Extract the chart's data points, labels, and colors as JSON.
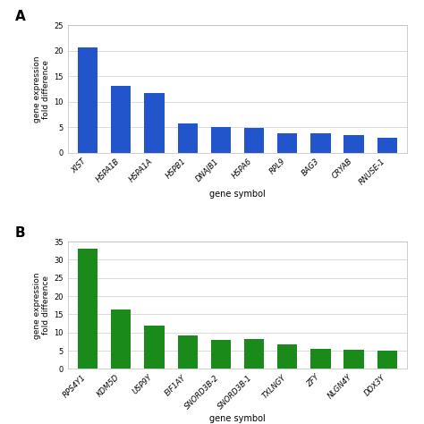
{
  "panel_A": {
    "categories": [
      "XIST",
      "HSPA1B",
      "HSPA1A",
      "HSPB1",
      "DNAJB1",
      "HSPA6",
      "RPL9",
      "BAG3",
      "CRYAB",
      "RNUSE-1"
    ],
    "values": [
      20.6,
      13.1,
      11.8,
      5.7,
      5.0,
      4.8,
      3.8,
      3.8,
      3.4,
      3.0
    ],
    "color": "#2255cc",
    "ylabel": "gene expression\nfold difference",
    "xlabel": "gene symbol",
    "ylim": [
      0,
      25
    ],
    "yticks": [
      0,
      5,
      10,
      15,
      20,
      25
    ],
    "label": "A"
  },
  "panel_B": {
    "categories": [
      "RPS4Y1",
      "KDM5D",
      "USP9Y",
      "EIF1AY",
      "SNORD3B-2",
      "SNORD3B-1",
      "TXLNGY",
      "ZFY",
      "NLGN4Y",
      "DDX3Y"
    ],
    "values": [
      33.0,
      16.3,
      12.0,
      9.2,
      8.0,
      8.1,
      6.8,
      5.6,
      5.2,
      5.0
    ],
    "color": "#1a8a1a",
    "ylabel": "gene expression\nfold difference",
    "xlabel": "gene symbol",
    "ylim": [
      0,
      35
    ],
    "yticks": [
      0,
      5,
      10,
      15,
      20,
      25,
      30,
      35
    ],
    "label": "B"
  },
  "background_color": "#ffffff",
  "figure_width": 4.74,
  "figure_height": 4.74
}
